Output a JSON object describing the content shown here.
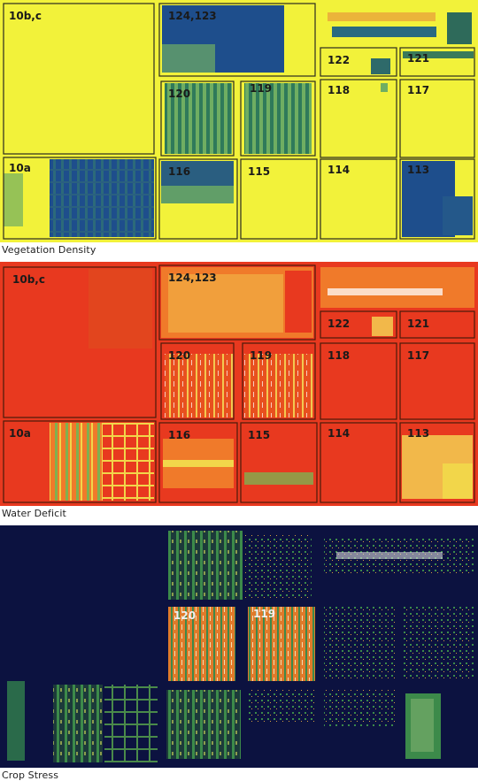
{
  "panels": [
    {
      "caption": "Vegetation Density",
      "plots": {
        "p10bc": "10b,c",
        "p124": "124,123",
        "p122": "122",
        "p121": "121",
        "p120": "120",
        "p119": "119",
        "p118": "118",
        "p117": "117",
        "p10a": "10a",
        "p116": "116",
        "p115": "115",
        "p114": "114",
        "p113": "113"
      }
    },
    {
      "caption": "Water Deficit",
      "plots": {
        "p10bc": "10b,c",
        "p124": "124,123",
        "p122": "122",
        "p121": "121",
        "p120": "120",
        "p119": "119",
        "p118": "118",
        "p117": "117",
        "p10a": "10a",
        "p116": "116",
        "p115": "115",
        "p114": "114",
        "p113": "113"
      }
    },
    {
      "caption": "Crop Stress",
      "plots": {
        "p120": "120",
        "p119": "119"
      }
    }
  ],
  "palette": {
    "veg_yellow": "#f2f23a",
    "veg_blue": "#1e4e8c",
    "veg_green": "#3f8a5a",
    "wd_red": "#e8391f",
    "wd_orange": "#f07a2a",
    "wd_yellow": "#f2d64a",
    "cs_navy": "#0c1240",
    "cs_green": "#3c8a4a",
    "cs_orange": "#e07a2a"
  }
}
